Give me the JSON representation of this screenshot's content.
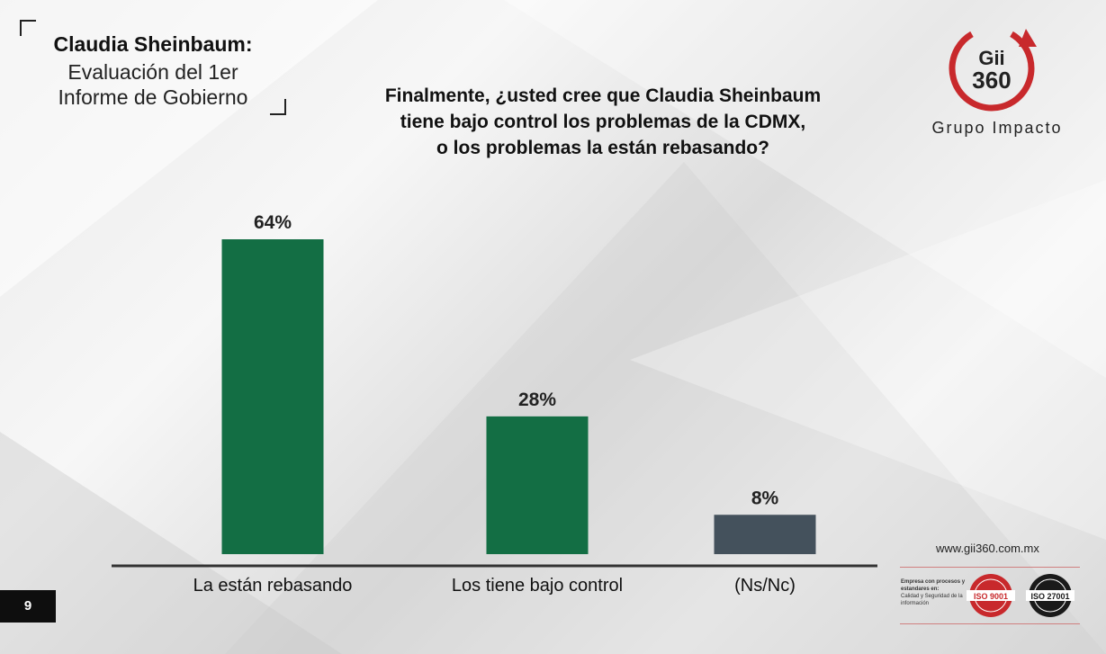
{
  "deck_title": {
    "line1": "Claudia Sheinbaum:",
    "line2": "Evaluación del 1er",
    "line3": "Informe de Gobierno"
  },
  "question": {
    "line1": "Finalmente, ¿usted cree que Claudia Sheinbaum",
    "line2": "tiene bajo control los problemas de la CDMX,",
    "line3": "o los problemas la están rebasando?"
  },
  "logo": {
    "mark_line1": "Gii",
    "mark_line2": "360",
    "brand": "Grupo Impacto",
    "accent_color": "#c8292c"
  },
  "chart_data": {
    "type": "bar",
    "categories": [
      "La están rebasando",
      "Los tiene bajo control",
      "(Ns/Nc)"
    ],
    "values": [
      64,
      28,
      8
    ],
    "data_labels": [
      "64%",
      "28%",
      "8%"
    ],
    "colors": [
      "#136e44",
      "#136e44",
      "#44515c"
    ],
    "ylim": [
      0,
      100
    ],
    "grid": false,
    "legend": "none"
  },
  "page_number": "9",
  "website": "www.gii360.com.mx",
  "certifications": {
    "text_bold": "Empresa con procesos y estandares en:",
    "text": "Calidad y Seguridad de la información",
    "seal1_label": "ISO 9001",
    "seal2_label": "ISO 27001"
  }
}
